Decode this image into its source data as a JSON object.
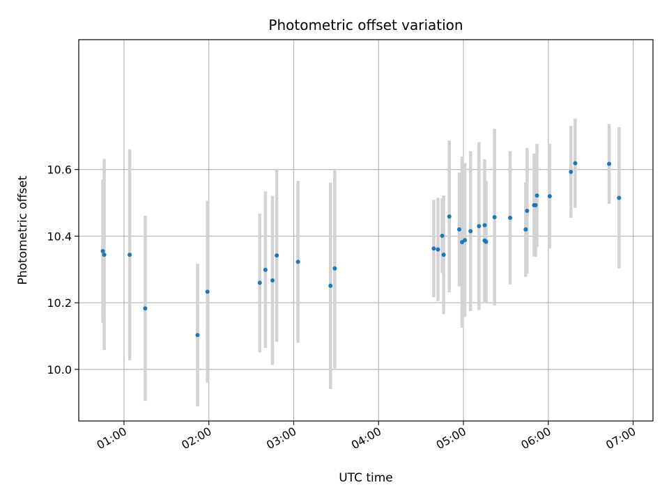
{
  "chart_data": {
    "type": "scatter",
    "title": "Photometric offset variation",
    "xlabel": "UTC time",
    "ylabel": "Photometric offset",
    "xlim": [
      "00:28",
      "07:14"
    ],
    "ylim": [
      9.845,
      10.99
    ],
    "x_ticks": [
      "01:00",
      "02:00",
      "03:00",
      "04:00",
      "05:00",
      "06:00",
      "07:00"
    ],
    "y_ticks": [
      "10.0",
      "10.2",
      "10.4",
      "10.6"
    ],
    "grid": true,
    "colors": {
      "point": "#1f77b4",
      "errorbar": "#d3d3d3",
      "grid": "#b0b0b0"
    },
    "points": [
      {
        "x": "00:45",
        "y": 10.355,
        "lo": 10.14,
        "hi": 10.57
      },
      {
        "x": "00:46",
        "y": 10.344,
        "lo": 10.058,
        "hi": 10.632
      },
      {
        "x": "01:04",
        "y": 10.344,
        "lo": 10.027,
        "hi": 10.661
      },
      {
        "x": "01:15",
        "y": 10.183,
        "lo": 9.905,
        "hi": 10.461
      },
      {
        "x": "01:52",
        "y": 10.103,
        "lo": 9.889,
        "hi": 10.317
      },
      {
        "x": "01:59",
        "y": 10.233,
        "lo": 9.96,
        "hi": 10.506
      },
      {
        "x": "02:36",
        "y": 10.26,
        "lo": 10.051,
        "hi": 10.467
      },
      {
        "x": "02:40",
        "y": 10.299,
        "lo": 10.064,
        "hi": 10.534
      },
      {
        "x": "02:45",
        "y": 10.267,
        "lo": 10.013,
        "hi": 10.521
      },
      {
        "x": "02:48",
        "y": 10.342,
        "lo": 10.083,
        "hi": 10.601
      },
      {
        "x": "03:03",
        "y": 10.323,
        "lo": 10.08,
        "hi": 10.566
      },
      {
        "x": "03:26",
        "y": 10.251,
        "lo": 9.941,
        "hi": 10.561
      },
      {
        "x": "03:29",
        "y": 10.303,
        "lo": 10.003,
        "hi": 10.603
      },
      {
        "x": "04:39",
        "y": 10.363,
        "lo": 10.217,
        "hi": 10.509
      },
      {
        "x": "04:42",
        "y": 10.36,
        "lo": 10.205,
        "hi": 10.515
      },
      {
        "x": "04:45",
        "y": 10.401,
        "lo": 10.289,
        "hi": 10.513
      },
      {
        "x": "04:46",
        "y": 10.344,
        "lo": 10.166,
        "hi": 10.522
      },
      {
        "x": "04:50",
        "y": 10.459,
        "lo": 10.231,
        "hi": 10.687
      },
      {
        "x": "04:57",
        "y": 10.42,
        "lo": 10.249,
        "hi": 10.591
      },
      {
        "x": "04:59",
        "y": 10.382,
        "lo": 10.125,
        "hi": 10.639
      },
      {
        "x": "05:01",
        "y": 10.388,
        "lo": 10.157,
        "hi": 10.619
      },
      {
        "x": "05:05",
        "y": 10.415,
        "lo": 10.175,
        "hi": 10.655
      },
      {
        "x": "05:11",
        "y": 10.43,
        "lo": 10.178,
        "hi": 10.682
      },
      {
        "x": "05:15",
        "y": 10.433,
        "lo": 10.235,
        "hi": 10.631
      },
      {
        "x": "05:15",
        "y": 10.387,
        "lo": 10.199,
        "hi": 10.575
      },
      {
        "x": "05:16",
        "y": 10.383,
        "lo": 10.2,
        "hi": 10.566
      },
      {
        "x": "05:22",
        "y": 10.457,
        "lo": 10.192,
        "hi": 10.722
      },
      {
        "x": "05:33",
        "y": 10.455,
        "lo": 10.255,
        "hi": 10.655
      },
      {
        "x": "05:44",
        "y": 10.42,
        "lo": 10.278,
        "hi": 10.562
      },
      {
        "x": "05:45",
        "y": 10.476,
        "lo": 10.287,
        "hi": 10.665
      },
      {
        "x": "05:50",
        "y": 10.493,
        "lo": 10.339,
        "hi": 10.647
      },
      {
        "x": "05:51",
        "y": 10.493,
        "lo": 10.338,
        "hi": 10.648
      },
      {
        "x": "05:52",
        "y": 10.522,
        "lo": 10.367,
        "hi": 10.677
      },
      {
        "x": "06:01",
        "y": 10.52,
        "lo": 10.363,
        "hi": 10.677
      },
      {
        "x": "06:16",
        "y": 10.593,
        "lo": 10.455,
        "hi": 10.731
      },
      {
        "x": "06:19",
        "y": 10.619,
        "lo": 10.485,
        "hi": 10.753
      },
      {
        "x": "06:43",
        "y": 10.617,
        "lo": 10.497,
        "hi": 10.737
      },
      {
        "x": "06:50",
        "y": 10.515,
        "lo": 10.303,
        "hi": 10.727
      }
    ]
  }
}
